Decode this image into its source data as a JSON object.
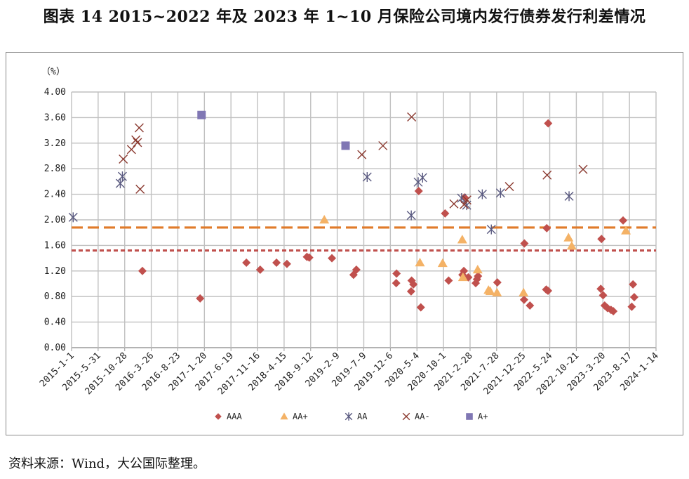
{
  "title": "图表 14  2015~2022 年及 2023 年 1~10 月保险公司境内发行债券发行利差情况",
  "source": "资料来源：Wind，大公国际整理。",
  "chart_data": {
    "type": "scatter",
    "ylabel": "（%）",
    "ylim": [
      0,
      4.0
    ],
    "yticks": [
      "0.00",
      "0.40",
      "0.80",
      "1.20",
      "1.60",
      "2.00",
      "2.40",
      "2.80",
      "3.20",
      "3.60",
      "4.00"
    ],
    "xlim": [
      "2015-01-01",
      "2024-01-14"
    ],
    "xticks": [
      "2015-1-1",
      "2015-5-31",
      "2015-10-28",
      "2016-3-26",
      "2016-8-23",
      "2017-1-20",
      "2017-6-19",
      "2017-11-16",
      "2018-4-15",
      "2018-9-12",
      "2019-2-9",
      "2019-7-9",
      "2019-12-6",
      "2020-5-4",
      "2020-10-1",
      "2021-2-28",
      "2021-7-28",
      "2021-12-25",
      "2022-5-24",
      "2022-10-21",
      "2023-3-20",
      "2023-8-17",
      "2024-1-14"
    ],
    "grid": true,
    "legend_position": "bottom",
    "reference_lines": [
      {
        "y": 1.88,
        "color": "#e07b2a",
        "style": "dashed"
      },
      {
        "y": 1.52,
        "color": "#c0504d",
        "style": "dotted"
      }
    ],
    "series": [
      {
        "name": "AAA",
        "marker": "diamond",
        "color": "#c0504d",
        "points": [
          [
            "2016-02-05",
            1.2
          ],
          [
            "2016-12-27",
            0.77
          ],
          [
            "2017-09-14",
            1.33
          ],
          [
            "2017-12-01",
            1.22
          ],
          [
            "2018-03-03",
            1.33
          ],
          [
            "2018-05-01",
            1.31
          ],
          [
            "2018-08-22",
            1.42
          ],
          [
            "2018-09-04",
            1.41
          ],
          [
            "2019-01-10",
            1.4
          ],
          [
            "2019-05-12",
            1.14
          ],
          [
            "2019-05-28",
            1.22
          ],
          [
            "2020-01-10",
            1.16
          ],
          [
            "2020-01-08",
            1.01
          ],
          [
            "2020-04-04",
            1.05
          ],
          [
            "2020-04-14",
            0.99
          ],
          [
            "2020-04-01",
            0.88
          ],
          [
            "2020-05-14",
            2.45
          ],
          [
            "2020-05-26",
            0.63
          ],
          [
            "2020-10-10",
            2.1
          ],
          [
            "2020-10-30",
            1.05
          ],
          [
            "2021-01-16",
            1.14
          ],
          [
            "2021-01-28",
            2.35
          ],
          [
            "2021-01-24",
            1.2
          ],
          [
            "2021-02-18",
            1.1
          ],
          [
            "2021-04-01",
            1.01
          ],
          [
            "2021-04-08",
            1.07
          ],
          [
            "2021-04-14",
            1.12
          ],
          [
            "2021-08-01",
            1.02
          ],
          [
            "2022-01-01",
            1.63
          ],
          [
            "2021-12-30",
            0.75
          ],
          [
            "2022-02-01",
            0.66
          ],
          [
            "2022-05-07",
            1.87
          ],
          [
            "2022-05-15",
            3.51
          ],
          [
            "2022-05-04",
            0.91
          ],
          [
            "2022-05-14",
            0.89
          ],
          [
            "2023-03-12",
            1.7
          ],
          [
            "2023-03-08",
            0.92
          ],
          [
            "2023-03-21",
            0.82
          ],
          [
            "2023-03-30",
            0.66
          ],
          [
            "2023-04-15",
            0.62
          ],
          [
            "2023-05-05",
            0.59
          ],
          [
            "2023-05-18",
            0.57
          ],
          [
            "2023-07-12",
            1.99
          ],
          [
            "2023-08-30",
            0.64
          ],
          [
            "2023-09-06",
            0.99
          ],
          [
            "2023-09-13",
            0.79
          ]
        ]
      },
      {
        "name": "AA+",
        "marker": "triangle",
        "color": "#f4b266",
        "points": [
          [
            "2018-11-28",
            2.0
          ],
          [
            "2020-05-21",
            1.33
          ],
          [
            "2020-09-26",
            1.32
          ],
          [
            "2021-01-15",
            1.69
          ],
          [
            "2021-01-19",
            1.1
          ],
          [
            "2021-04-12",
            1.22
          ],
          [
            "2021-06-12",
            0.9
          ],
          [
            "2021-06-22",
            0.88
          ],
          [
            "2021-07-30",
            0.86
          ],
          [
            "2021-12-27",
            0.86
          ],
          [
            "2022-09-07",
            1.72
          ],
          [
            "2022-09-25",
            1.59
          ],
          [
            "2023-07-28",
            1.83
          ]
        ]
      },
      {
        "name": "AA",
        "marker": "asterisk",
        "color": "#5a5a80",
        "points": [
          [
            "2015-01-10",
            2.04
          ],
          [
            "2015-10-03",
            2.57
          ],
          [
            "2015-10-15",
            2.68
          ],
          [
            "2019-07-28",
            2.67
          ],
          [
            "2020-04-02",
            2.07
          ],
          [
            "2020-05-11",
            2.59
          ],
          [
            "2020-06-05",
            2.66
          ],
          [
            "2021-01-11",
            2.34
          ],
          [
            "2021-02-09",
            2.23
          ],
          [
            "2021-05-08",
            2.4
          ],
          [
            "2021-06-28",
            1.85
          ],
          [
            "2021-08-19",
            2.42
          ],
          [
            "2022-09-10",
            2.37
          ]
        ]
      },
      {
        "name": "AA-",
        "marker": "x",
        "color": "#8b3a30",
        "points": [
          [
            "2015-10-20",
            2.95
          ],
          [
            "2015-12-05",
            3.1
          ],
          [
            "2015-12-30",
            3.25
          ],
          [
            "2016-01-08",
            3.21
          ],
          [
            "2016-01-18",
            3.44
          ],
          [
            "2016-01-23",
            2.48
          ],
          [
            "2019-06-28",
            3.02
          ],
          [
            "2019-10-25",
            3.16
          ],
          [
            "2020-04-04",
            3.61
          ],
          [
            "2020-11-29",
            2.25
          ],
          [
            "2021-01-26",
            2.24
          ],
          [
            "2021-02-10",
            2.31
          ],
          [
            "2021-10-08",
            2.52
          ],
          [
            "2022-05-09",
            2.7
          ],
          [
            "2022-11-28",
            2.79
          ]
        ]
      },
      {
        "name": "A+",
        "marker": "square",
        "color": "#8077b4",
        "points": [
          [
            "2017-01-04",
            3.64
          ],
          [
            "2019-03-28",
            3.16
          ]
        ]
      }
    ]
  }
}
